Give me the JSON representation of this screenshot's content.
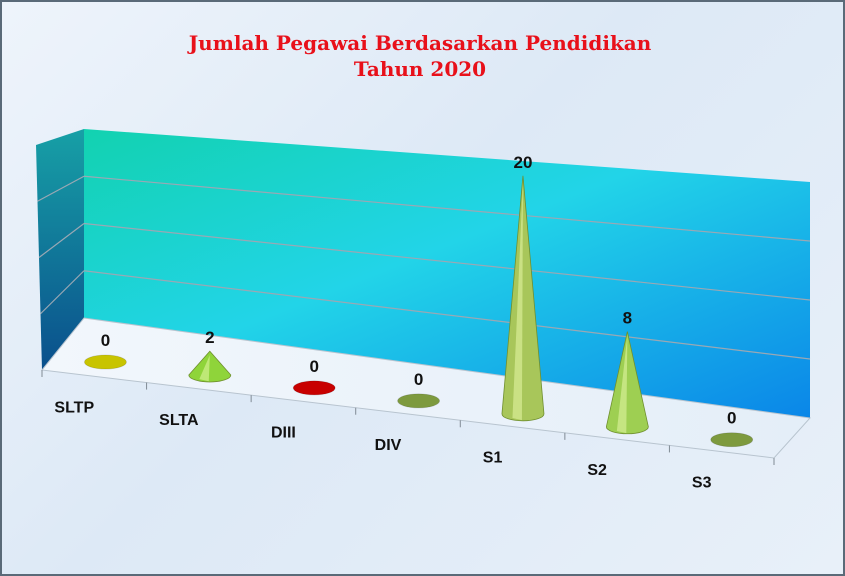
{
  "chart_data": {
    "type": "bar",
    "title": "Jumlah Pegawai Berdasarkan Pendidikan",
    "subtitle": "Tahun 2020",
    "categories": [
      "SLTP",
      "SLTA",
      "DIII",
      "DIV",
      "S1",
      "S2",
      "S3"
    ],
    "values": [
      0,
      2,
      0,
      0,
      20,
      8,
      0
    ],
    "ylim": [
      0,
      20
    ],
    "grid": true,
    "legend": "none",
    "colors": [
      "#c8c400",
      "#8fd43a",
      "#c80000",
      "#7d9a3e",
      "#a8c65a",
      "#9ecf52",
      "#7d9a3e"
    ],
    "wall_colors": [
      "#12d2b0",
      "#0a86e8"
    ]
  }
}
